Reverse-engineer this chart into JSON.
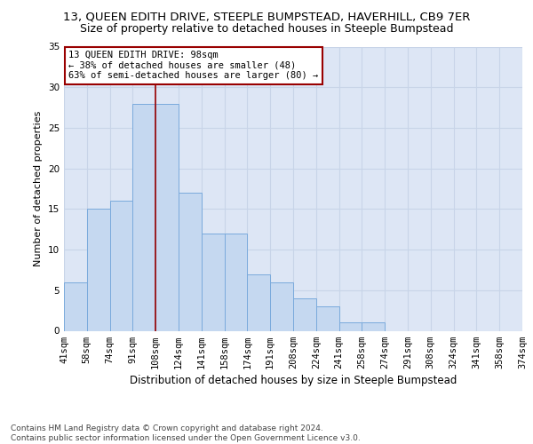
{
  "title": "13, QUEEN EDITH DRIVE, STEEPLE BUMPSTEAD, HAVERHILL, CB9 7ER",
  "subtitle": "Size of property relative to detached houses in Steeple Bumpstead",
  "xlabel": "Distribution of detached houses by size in Steeple Bumpstead",
  "ylabel": "Number of detached properties",
  "bins": [
    "41sqm",
    "58sqm",
    "74sqm",
    "91sqm",
    "108sqm",
    "124sqm",
    "141sqm",
    "158sqm",
    "174sqm",
    "191sqm",
    "208sqm",
    "224sqm",
    "241sqm",
    "258sqm",
    "274sqm",
    "291sqm",
    "308sqm",
    "324sqm",
    "341sqm",
    "358sqm",
    "374sqm"
  ],
  "bar_values": [
    6,
    15,
    16,
    28,
    28,
    17,
    12,
    12,
    7,
    6,
    4,
    3,
    1,
    1,
    0,
    0,
    0,
    0,
    0,
    0
  ],
  "bar_color": "#c5d8f0",
  "bar_edge_color": "#7aaadc",
  "vline_x": 3.5,
  "vline_color": "#990000",
  "annotation_text": "13 QUEEN EDITH DRIVE: 98sqm\n← 38% of detached houses are smaller (48)\n63% of semi-detached houses are larger (80) →",
  "annotation_box_color": "#ffffff",
  "annotation_box_edge": "#990000",
  "ylim": [
    0,
    35
  ],
  "yticks": [
    0,
    5,
    10,
    15,
    20,
    25,
    30,
    35
  ],
  "grid_color": "#c8d4e8",
  "background_color": "#dde6f5",
  "footer": "Contains HM Land Registry data © Crown copyright and database right 2024.\nContains public sector information licensed under the Open Government Licence v3.0.",
  "title_fontsize": 9.5,
  "subtitle_fontsize": 9,
  "xlabel_fontsize": 8.5,
  "ylabel_fontsize": 8,
  "footer_fontsize": 6.5,
  "tick_fontsize": 7.5
}
